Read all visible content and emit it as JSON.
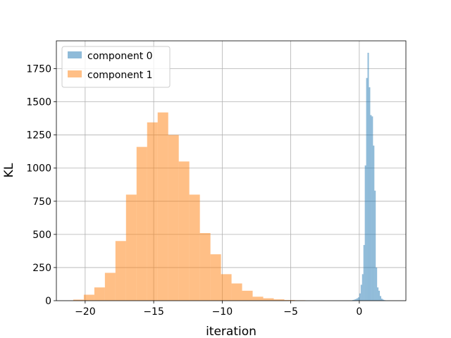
{
  "chart_data": {
    "type": "bar",
    "title": "",
    "xlabel": "iteration",
    "ylabel": "KL",
    "xlim": [
      -22.1,
      3.4
    ],
    "ylim": [
      0,
      1960
    ],
    "xticks": [
      -20,
      -15,
      -10,
      -5,
      0
    ],
    "yticks": [
      0,
      250,
      500,
      750,
      1000,
      1250,
      1500,
      1750
    ],
    "grid": true,
    "legend_position": "top-left",
    "series": [
      {
        "name": "component 0",
        "color": "#1f77b4",
        "opacity": 0.5,
        "bin_width": 0.1,
        "bins": [
          [
            -0.5,
            5
          ],
          [
            -0.4,
            8
          ],
          [
            -0.3,
            12
          ],
          [
            -0.2,
            18
          ],
          [
            -0.1,
            25
          ],
          [
            0.0,
            55
          ],
          [
            0.1,
            120
          ],
          [
            0.2,
            200
          ],
          [
            0.3,
            420
          ],
          [
            0.4,
            1020
          ],
          [
            0.5,
            1680
          ],
          [
            0.6,
            1870
          ],
          [
            0.7,
            1610
          ],
          [
            0.8,
            1400
          ],
          [
            0.9,
            1390
          ],
          [
            1.0,
            1170
          ],
          [
            1.1,
            830
          ],
          [
            1.2,
            250
          ],
          [
            1.3,
            100
          ],
          [
            1.4,
            75
          ],
          [
            1.5,
            35
          ],
          [
            1.6,
            15
          ],
          [
            1.7,
            8
          ],
          [
            1.8,
            4
          ]
        ]
      },
      {
        "name": "component 1",
        "color": "#ff7f0e",
        "opacity": 0.5,
        "bin_width": 0.77,
        "bins": [
          [
            -20.87,
            8
          ],
          [
            -20.1,
            45
          ],
          [
            -19.33,
            100
          ],
          [
            -18.56,
            210
          ],
          [
            -17.79,
            450
          ],
          [
            -17.02,
            800
          ],
          [
            -16.25,
            1160
          ],
          [
            -15.48,
            1345
          ],
          [
            -14.71,
            1420
          ],
          [
            -13.94,
            1250
          ],
          [
            -13.17,
            1050
          ],
          [
            -12.4,
            800
          ],
          [
            -11.63,
            510
          ],
          [
            -10.86,
            350
          ],
          [
            -10.09,
            200
          ],
          [
            -9.32,
            130
          ],
          [
            -8.55,
            75
          ],
          [
            -7.78,
            30
          ],
          [
            -7.01,
            18
          ],
          [
            -6.24,
            10
          ],
          [
            -5.47,
            5
          ],
          [
            -4.7,
            3
          ]
        ]
      }
    ]
  }
}
